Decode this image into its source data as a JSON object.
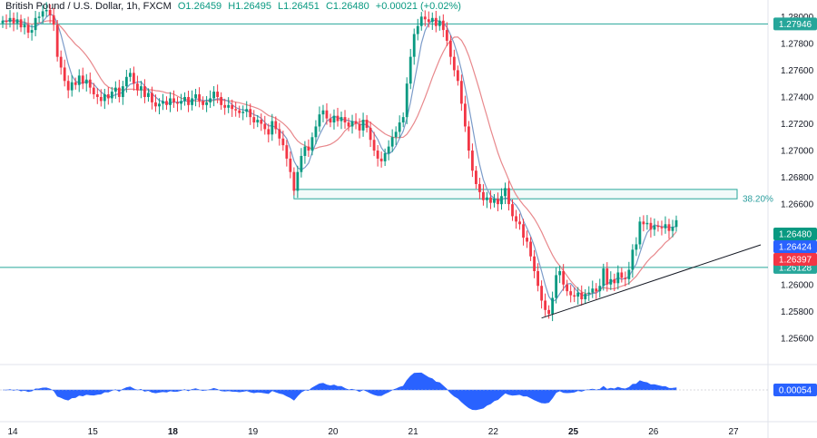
{
  "header": {
    "symbol": "British Pound / U.S. Dollar, 1h, FXCM",
    "open": "O1.26459",
    "high": "H1.26495",
    "low": "L1.26451",
    "close": "C1.26480",
    "change": "+0.00021 (+0.02%)"
  },
  "colors": {
    "up": "#089981",
    "down": "#f23645",
    "ma_fast": "#7b9bc9",
    "ma_slow": "#e8888c",
    "level_line": "#26a69a",
    "fib_box": "#26a69a",
    "osc_fill": "#2962ff",
    "trendline": "#131722"
  },
  "chart_data": {
    "type": "candlestick",
    "title": "British Pound / U.S. Dollar, 1h, FXCM",
    "ylim": [
      1.2545,
      1.2807
    ],
    "y_ticks": [
      "1.28000",
      "1.27800",
      "1.27600",
      "1.27400",
      "1.27200",
      "1.27000",
      "1.26800",
      "1.26600",
      "1.26200",
      "1.26000",
      "1.25800",
      "1.25600"
    ],
    "y_tick_values": [
      1.28,
      1.278,
      1.276,
      1.274,
      1.272,
      1.27,
      1.268,
      1.266,
      1.262,
      1.26,
      1.258,
      1.256
    ],
    "x_ticks": [
      {
        "label": "14",
        "x": 0
      },
      {
        "label": "15",
        "x": 23
      },
      {
        "label": "18",
        "x": 46
      },
      {
        "label": "19",
        "x": 69
      },
      {
        "label": "20",
        "x": 92
      },
      {
        "label": "21",
        "x": 115
      },
      {
        "label": "22",
        "x": 138
      },
      {
        "label": "25",
        "x": 161
      },
      {
        "label": "26",
        "x": 184
      },
      {
        "label": "27",
        "x": 207
      }
    ],
    "price_levels": [
      {
        "label": "1.27946",
        "value": 1.27946,
        "color": "#26a69a"
      },
      {
        "label": "1.26128",
        "value": 1.26128,
        "color": "#26a69a"
      }
    ],
    "price_badges": [
      {
        "label": "1.26480",
        "value": 1.2648,
        "color": "#089981"
      },
      {
        "label": "1.26424",
        "value": 1.26424,
        "color": "#2962ff"
      },
      {
        "label": "1.26397",
        "value": 1.26397,
        "color": "#f23645"
      }
    ],
    "fib_zone": {
      "label": "38.20%",
      "x_start": 80,
      "x_end": 207,
      "y_low": 1.2664,
      "y_high": 1.2671
    },
    "trendline": {
      "x_start": 148,
      "y_start": 1.2575,
      "x_end": 213,
      "y_end": 1.2638
    },
    "candles_close": [
      1.2797,
      1.2796,
      1.2799,
      1.2795,
      1.2798,
      1.2792,
      1.2794,
      1.2788,
      1.279,
      1.2799,
      1.28,
      1.2804,
      1.2805,
      1.2801,
      1.2794,
      1.277,
      1.2762,
      1.2752,
      1.2745,
      1.2751,
      1.2749,
      1.2756,
      1.275,
      1.2753,
      1.2747,
      1.2742,
      1.274,
      1.2737,
      1.2742,
      1.2739,
      1.2744,
      1.2747,
      1.274,
      1.2748,
      1.2755,
      1.2758,
      1.275,
      1.2745,
      1.2748,
      1.274,
      1.2743,
      1.2736,
      1.2733,
      1.2735,
      1.2737,
      1.2734,
      1.2739,
      1.2736,
      1.2735,
      1.2737,
      1.274,
      1.2734,
      1.2739,
      1.2742,
      1.2737,
      1.2734,
      1.2736,
      1.2739,
      1.2744,
      1.274,
      1.2734,
      1.2732,
      1.2734,
      1.2731,
      1.273,
      1.2728,
      1.2729,
      1.2731,
      1.2725,
      1.2721,
      1.2723,
      1.272,
      1.2716,
      1.2712,
      1.2722,
      1.2716,
      1.2709,
      1.2704,
      1.2694,
      1.2684,
      1.267,
      1.2684,
      1.2696,
      1.2703,
      1.27,
      1.271,
      1.2718,
      1.2727,
      1.273,
      1.2724,
      1.2721,
      1.2726,
      1.2722,
      1.2725,
      1.2721,
      1.2718,
      1.2722,
      1.272,
      1.2715,
      1.2723,
      1.2717,
      1.2708,
      1.27,
      1.2694,
      1.2692,
      1.2698,
      1.2703,
      1.271,
      1.2714,
      1.2721,
      1.2725,
      1.275,
      1.277,
      1.2787,
      1.2793,
      1.28,
      1.2798,
      1.2796,
      1.2799,
      1.2793,
      1.2797,
      1.279,
      1.2782,
      1.277,
      1.276,
      1.2752,
      1.2735,
      1.2718,
      1.27,
      1.2685,
      1.2675,
      1.2669,
      1.2663,
      1.2665,
      1.2661,
      1.2664,
      1.266,
      1.2666,
      1.2672,
      1.266,
      1.2651,
      1.2647,
      1.2645,
      1.2635,
      1.2632,
      1.2621,
      1.261,
      1.2599,
      1.2588,
      1.2581,
      1.2578,
      1.259,
      1.2607,
      1.261,
      1.26,
      1.2595,
      1.2592,
      1.2591,
      1.2594,
      1.2589,
      1.2593,
      1.2594,
      1.2597,
      1.2595,
      1.2599,
      1.2612,
      1.26,
      1.2604,
      1.2601,
      1.2609,
      1.2605,
      1.2604,
      1.2611,
      1.2626,
      1.263,
      1.2647,
      1.2645,
      1.2646,
      1.2641,
      1.2644,
      1.2643,
      1.2642,
      1.2645,
      1.264,
      1.2643,
      1.2648
    ],
    "oscillator": {
      "label": "0.00054",
      "value": 0.00054,
      "color": "#2962ff"
    }
  }
}
